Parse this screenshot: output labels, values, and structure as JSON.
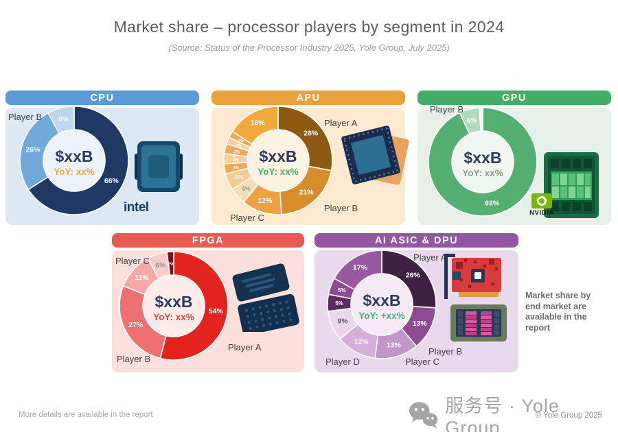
{
  "page": {
    "title": "Market share – processor players by segment in 2024",
    "subtitle": "(Source: Status of the Processor Industry 2025, Yole Group, July 2025)",
    "footer_note": "More details are available in the report",
    "side_note": "Market share by end market are available in the report",
    "watermark": "服务号 · Yole Group",
    "copyright": "© Yole Group 2025"
  },
  "chart_data": [
    {
      "type": "donut",
      "segment": "CPU",
      "header_color": "#5B9BD5",
      "panel_color": "#DCE9F5",
      "hole_color": "#EBF2FA",
      "center_value": "$xxB",
      "center_yoy": "YoY: xx%",
      "yoy_color": "#F0A63E",
      "value_color": "#2D3A62",
      "leader_logo": "intel",
      "slices": [
        {
          "value": 66,
          "label": "66%",
          "color": "#1F3864",
          "label_color": "#FFFFFF"
        },
        {
          "value": 26,
          "label": "26%",
          "color": "#71A9DB",
          "label_color": "#FFFFFF"
        },
        {
          "value": 8,
          "label": "8%",
          "color": "#BCD6EE",
          "label_color": "#FFFFFF"
        }
      ],
      "players": [
        {
          "label": "Player B"
        }
      ]
    },
    {
      "type": "donut",
      "segment": "APU",
      "header_color": "#E9A23B",
      "panel_color": "#FCE9CF",
      "hole_color": "#FBF2E1",
      "center_value": "$xxB",
      "center_yoy": "YoY: xx%",
      "yoy_color": "#45B06B",
      "value_color": "#2D3A62",
      "leader_logo": "",
      "slices": [
        {
          "value": 28,
          "label": "28%",
          "color": "#8D5A13",
          "label_color": "#FFFFFF"
        },
        {
          "value": 21,
          "label": "21%",
          "color": "#D68E2A",
          "label_color": "#FFFFFF"
        },
        {
          "value": 12,
          "label": "12%",
          "color": "#EFA141",
          "label_color": "#FFFFFF"
        },
        {
          "value": 5,
          "label": "5%",
          "color": "#F6DDB3",
          "label_color": "#8C8C8C"
        },
        {
          "value": 5,
          "label": "5%",
          "color": "#F2CB96",
          "label_color": "#FFFFFF"
        },
        {
          "value": 3,
          "label": "3%",
          "color": "#EFA952",
          "label_color": "#FFFFFF"
        },
        {
          "value": 3,
          "label": "3%",
          "color": "#F4CF9F",
          "label_color": "#FFFFFF"
        },
        {
          "value": 3,
          "label": "3%",
          "color": "#EFA952",
          "label_color": "#FFFFFF"
        },
        {
          "value": 2,
          "label": "2%",
          "color": "#F4CF9F",
          "label_color": "#FFFFFF"
        },
        {
          "value": 2,
          "label": "2%",
          "color": "#EFA952",
          "label_color": "#FFFFFF"
        },
        {
          "value": 16,
          "label": "16%",
          "color": "#F2A93B",
          "label_color": "#FFFFFF"
        }
      ],
      "players": [
        {
          "label": "Player A"
        },
        {
          "label": "Player B"
        },
        {
          "label": "Player C"
        }
      ]
    },
    {
      "type": "donut",
      "segment": "GPU",
      "header_color": "#44AD66",
      "panel_color": "#E6F0E7",
      "hole_color": "#EFF6F0",
      "center_value": "$xxB",
      "center_yoy": "YoY: xx%",
      "yoy_color": "#8C9E92",
      "value_color": "#2D3A62",
      "leader_logo": "NVIDIA",
      "slices": [
        {
          "value": 93,
          "label": "93%",
          "color": "#54AF72",
          "label_color": "#FFFFFF"
        },
        {
          "value": 6,
          "label": "6%",
          "color": "#B0DBB8",
          "label_color": "#FFFFFF"
        },
        {
          "value": 1,
          "label": "",
          "color": "#F2F8F3",
          "label_color": "#FFFFFF"
        }
      ],
      "players": [
        {
          "label": "Player B"
        }
      ]
    },
    {
      "type": "donut",
      "segment": "FPGA",
      "header_color": "#E95A52",
      "panel_color": "#FBDFDC",
      "hole_color": "#FCEBE8",
      "center_value": "$xxB",
      "center_yoy": "YoY: xx%",
      "yoy_color": "#D4494B",
      "value_color": "#2D3A62",
      "leader_logo": "",
      "slices": [
        {
          "value": 54,
          "label": "54%",
          "color": "#E2231F",
          "label_color": "#FFFFFF"
        },
        {
          "value": 27,
          "label": "27%",
          "color": "#EF7070",
          "label_color": "#FFFFFF"
        },
        {
          "value": 11,
          "label": "11%",
          "color": "#F5A8A8",
          "label_color": "#FFFFFF"
        },
        {
          "value": 6,
          "label": "6%",
          "color": "#F9CEC9",
          "label_color": "#8C8C8C"
        },
        {
          "value": 2,
          "label": "2%",
          "color": "#7E1315",
          "label_color": "#FFFFFF"
        }
      ],
      "players": [
        {
          "label": "Player A"
        },
        {
          "label": "Player B"
        },
        {
          "label": "Player C"
        }
      ]
    },
    {
      "type": "donut",
      "segment": "AI ASIC & DPU",
      "header_color": "#9456A0",
      "panel_color": "#E9D9EC",
      "hole_color": "#F3EAF5",
      "center_value": "$xxB",
      "center_yoy": "YoY: +xx%",
      "yoy_color": "#4CAF72",
      "value_color": "#2D3A62",
      "leader_logo": "",
      "slices": [
        {
          "value": 26,
          "label": "26%",
          "color": "#3F2143",
          "label_color": "#FFFFFF"
        },
        {
          "value": 13,
          "label": "13%",
          "color": "#8E4B92",
          "label_color": "#FFFFFF"
        },
        {
          "value": 13,
          "label": "13%",
          "color": "#C495C9",
          "label_color": "#FFFFFF"
        },
        {
          "value": 12,
          "label": "12%",
          "color": "#D5AFDA",
          "label_color": "#FFFFFF"
        },
        {
          "value": 9,
          "label": "9%",
          "color": "#E8D8EA",
          "label_color": "#5F5F5F"
        },
        {
          "value": 5,
          "label": "5%",
          "color": "#5C2A62",
          "label_color": "#FFFFFF"
        },
        {
          "value": 5,
          "label": "5%",
          "color": "#8D4B93",
          "label_color": "#FFFFFF"
        },
        {
          "value": 17,
          "label": "17%",
          "color": "#9859A1",
          "label_color": "#FFFFFF"
        }
      ],
      "players": [
        {
          "label": "Player A"
        },
        {
          "label": "Player B"
        },
        {
          "label": "Player C"
        },
        {
          "label": "Player D"
        }
      ]
    }
  ]
}
